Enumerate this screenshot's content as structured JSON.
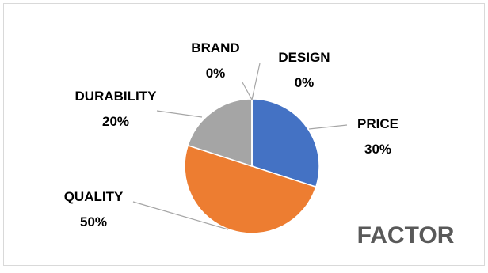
{
  "chart_data": {
    "type": "pie",
    "title": "FACTOR",
    "categories": [
      "PRICE",
      "QUALITY",
      "DURABILITY",
      "BRAND",
      "DESIGN"
    ],
    "values": [
      30,
      50,
      20,
      0,
      0
    ],
    "value_labels": [
      "30%",
      "50%",
      "20%",
      "0%",
      "0%"
    ],
    "colors": [
      "#4472C4",
      "#ED7D31",
      "#A5A5A5",
      "#FFC000",
      "#5B9BD5"
    ],
    "legend": "none",
    "title_position": "bottom-right"
  }
}
